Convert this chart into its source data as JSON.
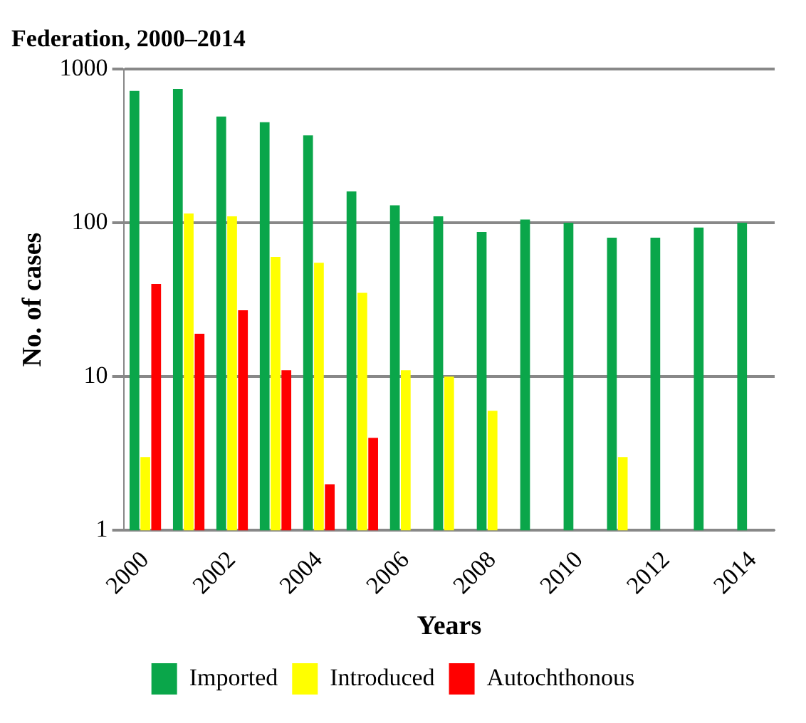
{
  "chart_data": {
    "type": "bar",
    "title": "Federation, 2000–2014",
    "xlabel": "Years",
    "ylabel": "No. of cases",
    "categories": [
      "2000",
      null,
      "2002",
      null,
      "2004",
      null,
      "2006",
      null,
      "2008",
      null,
      "2010",
      null,
      "2012",
      null,
      "2014"
    ],
    "series": [
      {
        "name": "Imported",
        "color": "#0aa64a",
        "values": [
          720,
          740,
          490,
          450,
          370,
          160,
          130,
          110,
          87,
          105,
          100,
          80,
          80,
          93,
          100
        ]
      },
      {
        "name": "Introduced",
        "color": "#ffff00",
        "values": [
          3,
          115,
          110,
          60,
          55,
          35,
          11,
          10,
          6,
          null,
          null,
          3,
          null,
          null,
          null
        ]
      },
      {
        "name": "Autochthonous",
        "color": "#ff0000",
        "values": [
          40,
          19,
          27,
          11,
          2,
          4,
          null,
          null,
          null,
          null,
          null,
          null,
          null,
          null,
          null
        ]
      }
    ],
    "log": "y",
    "ylim": [
      1,
      1000
    ],
    "yticks": [
      1,
      10,
      100,
      1000
    ],
    "grid": "y",
    "legend": "bottom"
  }
}
